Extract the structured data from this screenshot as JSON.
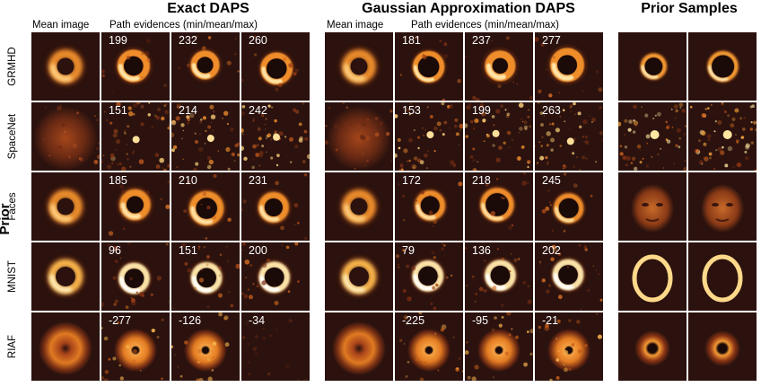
{
  "headers": {
    "exact": "Exact DAPS",
    "gauss": "Gaussian Approximation DAPS",
    "prior_samples": "Prior Samples"
  },
  "subheaders": {
    "mean_exact": "Mean image",
    "path_exact": "Path evidences (min/mean/max)",
    "mean_gauss": "Mean image",
    "path_gauss": "Path evidences (min/mean/max)"
  },
  "axis_label": "Prior",
  "rows": [
    {
      "label": "GRMHD",
      "exact": [
        "199",
        "232",
        "260"
      ],
      "gauss": [
        "181",
        "237",
        "277"
      ]
    },
    {
      "label": "SpaceNet",
      "exact": [
        "151",
        "214",
        "242"
      ],
      "gauss": [
        "153",
        "199",
        "263"
      ]
    },
    {
      "label": "Faces",
      "exact": [
        "185",
        "210",
        "231"
      ],
      "gauss": [
        "172",
        "218",
        "245"
      ]
    },
    {
      "label": "MNIST",
      "exact": [
        "96",
        "151",
        "200"
      ],
      "gauss": [
        "79",
        "136",
        "202"
      ]
    },
    {
      "label": "RIAF",
      "exact": [
        "-277",
        "-126",
        "-34"
      ],
      "gauss": [
        "-225",
        "-95",
        "-21"
      ]
    }
  ],
  "colors": {
    "background": "#ffffff",
    "panel_dark": "#2e1410",
    "ring_bright": "#ffd27a",
    "ring_mid": "#e2781c"
  }
}
